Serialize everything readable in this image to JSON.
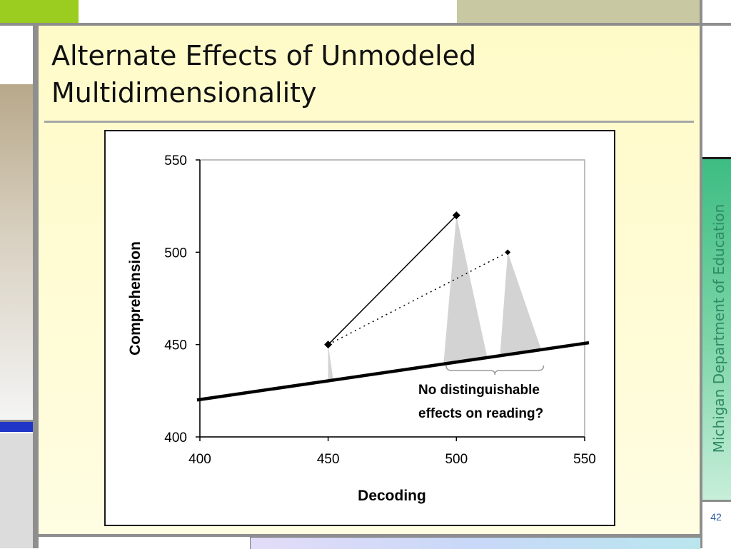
{
  "slide": {
    "title": "Alternate Effects of Unmodeled Multidimensionality",
    "side_label": "Michigan Department of Education",
    "page_number": "42"
  },
  "colors": {
    "slide_bg": "#fffbcc",
    "accent_green": "#9acd1f",
    "accent_blue": "#1f35c8",
    "accent_tan": "#c8c8a3",
    "side_band": "#3dbd82",
    "side_text": "#2e8a64"
  },
  "chart_data": {
    "type": "scatter",
    "xlabel": "Decoding",
    "ylabel": "Comprehension",
    "xlim": [
      400,
      550
    ],
    "ylim": [
      400,
      550
    ],
    "x_ticks": [
      400,
      450,
      500,
      550
    ],
    "y_ticks": [
      400,
      450,
      500,
      550
    ],
    "grid": false,
    "regression_line": [
      [
        400,
        420
      ],
      [
        550,
        451
      ]
    ],
    "series": [
      {
        "style": "solid",
        "marker": "diamond",
        "points": [
          [
            450,
            450
          ],
          [
            500,
            520
          ]
        ]
      },
      {
        "style": "dotted",
        "marker": "diamond-small",
        "points": [
          [
            450,
            450
          ],
          [
            520,
            500
          ]
        ]
      }
    ],
    "distributions": [
      {
        "peak": [
          450,
          450
        ],
        "base": [
          450,
          452
        ]
      },
      {
        "peak": [
          500,
          520
        ],
        "base": [
          495,
          512
        ]
      },
      {
        "peak": [
          520,
          500
        ],
        "base": [
          517,
          533
        ]
      }
    ],
    "annotation": {
      "lines": [
        "No distinguishable",
        "effects on reading?"
      ],
      "brace_x": [
        496,
        534
      ]
    }
  }
}
